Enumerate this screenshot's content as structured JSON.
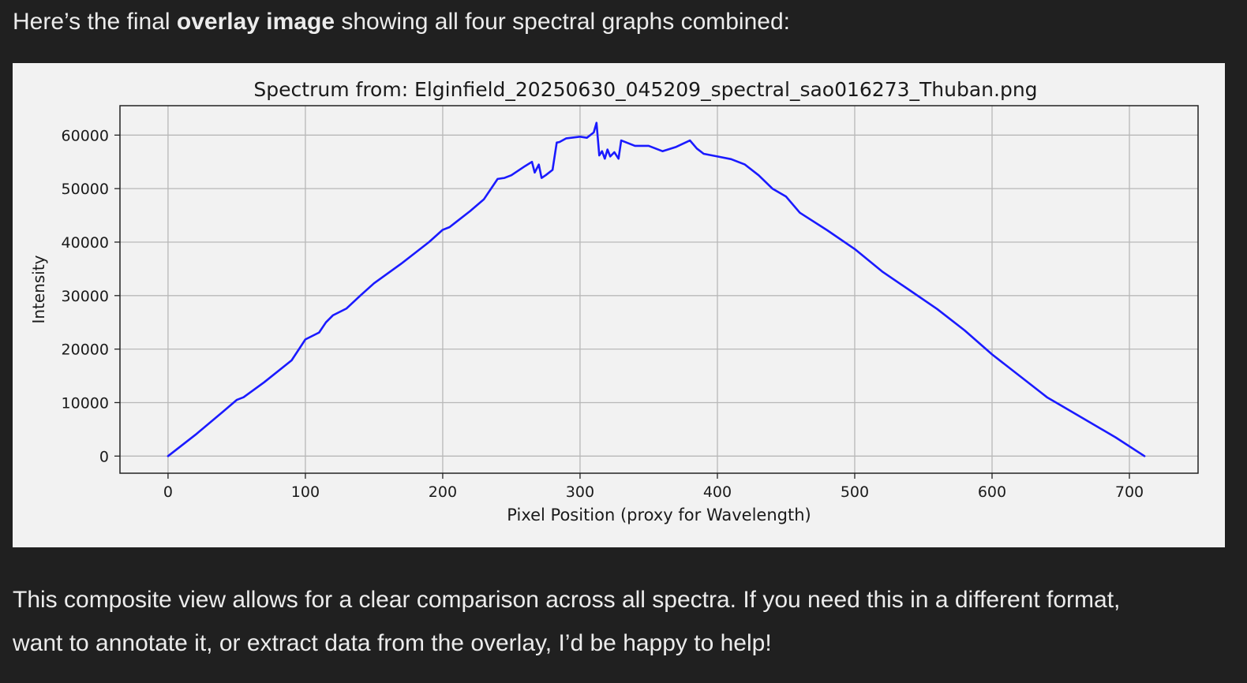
{
  "message": {
    "intro_before": "Here’s the final ",
    "intro_bold": "overlay image",
    "intro_after": " showing all four spectral graphs combined:",
    "outro_line1": "This composite view allows for a clear comparison across all spectra. If you need this in a different format,",
    "outro_line2": "want to annotate it, or extract data from the overlay, I’d be happy to help!"
  },
  "chart_data": {
    "type": "line",
    "title": "Spectrum from: Elginfield_20250630_045209_spectral_sao016273_Thuban.png",
    "xlabel": "Pixel Position (proxy for Wavelength)",
    "ylabel": "Intensity",
    "xlim": [
      -35,
      750
    ],
    "ylim": [
      -3200,
      65500
    ],
    "xticks": [
      0,
      100,
      200,
      300,
      400,
      500,
      600,
      700
    ],
    "yticks": [
      0,
      10000,
      20000,
      30000,
      40000,
      50000,
      60000
    ],
    "grid": true,
    "line_color": "#1a1aff",
    "series": [
      {
        "x": [
          0,
          20,
          40,
          50,
          55,
          70,
          90,
          100,
          110,
          115,
          120,
          130,
          140,
          150,
          170,
          190,
          200,
          205,
          210,
          220,
          230,
          240,
          245,
          250,
          260,
          265,
          267,
          270,
          272,
          275,
          280,
          283,
          285,
          290,
          300,
          305,
          310,
          312,
          314,
          316,
          318,
          320,
          322,
          325,
          328,
          330,
          340,
          350,
          360,
          370,
          380,
          385,
          390,
          400,
          410,
          420,
          430,
          440,
          450,
          460,
          480,
          500,
          520,
          540,
          560,
          580,
          600,
          620,
          635,
          640,
          650,
          670,
          690,
          711
        ],
        "values": [
          0,
          4000,
          8300,
          10500,
          11000,
          13800,
          17900,
          21800,
          23100,
          25000,
          26300,
          27600,
          30000,
          32300,
          36000,
          40000,
          42300,
          42800,
          43800,
          45800,
          48000,
          51800,
          52000,
          52500,
          54200,
          55000,
          53000,
          54500,
          52000,
          52500,
          53500,
          58600,
          58700,
          59400,
          59700,
          59500,
          60500,
          62300,
          56200,
          57000,
          55600,
          57300,
          56000,
          56800,
          55600,
          59000,
          58000,
          58000,
          57000,
          57800,
          59000,
          57500,
          56500,
          56000,
          55500,
          54500,
          52500,
          50000,
          48500,
          45500,
          42200,
          38700,
          34500,
          31000,
          27500,
          23500,
          19000,
          15000,
          12000,
          11000,
          9500,
          6500,
          3500,
          0
        ]
      }
    ]
  }
}
